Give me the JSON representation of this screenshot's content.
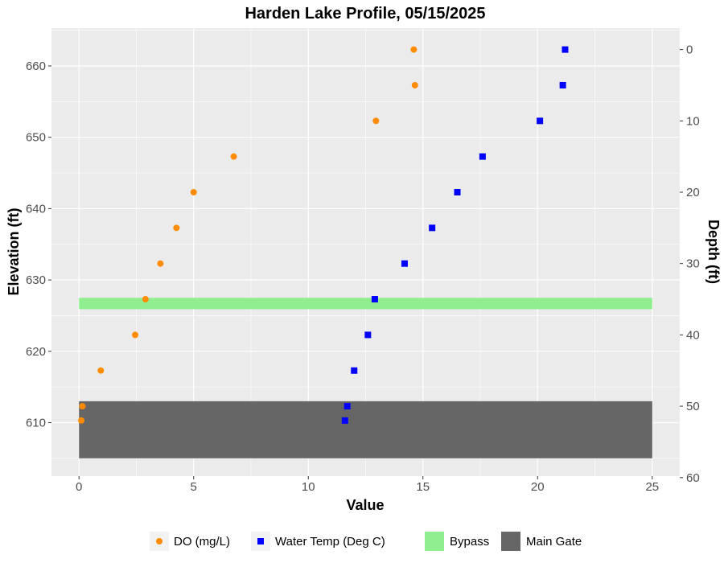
{
  "chart_data": {
    "type": "scatter",
    "title": "Harden Lake Profile,  05/15/2025",
    "xlabel": "Value",
    "ylabel": "Elevation (ft)",
    "y2label": "Depth (ft)",
    "xlim": [
      -1.2,
      26.2
    ],
    "ylim": [
      602.5,
      665.3
    ],
    "xticks": [
      0,
      5,
      10,
      15,
      20,
      25
    ],
    "yticks": [
      610,
      620,
      630,
      640,
      650,
      660
    ],
    "y2ticks": [
      0,
      10,
      20,
      30,
      40,
      50,
      60
    ],
    "surface_elevation": 662.3,
    "grid": true,
    "background": "#ebebeb",
    "legend_position": "bottom",
    "series": [
      {
        "name": "DO (mg/L)",
        "marker": "circle",
        "color": "#ff8c00",
        "points": [
          {
            "x": 14.6,
            "y": 662.3
          },
          {
            "x": 14.65,
            "y": 657.3
          },
          {
            "x": 12.95,
            "y": 652.3
          },
          {
            "x": 6.75,
            "y": 647.3
          },
          {
            "x": 5.0,
            "y": 642.3
          },
          {
            "x": 4.25,
            "y": 637.3
          },
          {
            "x": 3.55,
            "y": 632.3
          },
          {
            "x": 2.9,
            "y": 627.3
          },
          {
            "x": 2.45,
            "y": 622.3
          },
          {
            "x": 0.95,
            "y": 617.3
          },
          {
            "x": 0.15,
            "y": 612.3
          },
          {
            "x": 0.1,
            "y": 610.3
          }
        ]
      },
      {
        "name": "Water Temp (Deg C)",
        "marker": "square",
        "color": "#0000ff",
        "points": [
          {
            "x": 21.2,
            "y": 662.3
          },
          {
            "x": 21.1,
            "y": 657.3
          },
          {
            "x": 20.1,
            "y": 652.3
          },
          {
            "x": 17.6,
            "y": 647.3
          },
          {
            "x": 16.5,
            "y": 642.3
          },
          {
            "x": 15.4,
            "y": 637.3
          },
          {
            "x": 14.2,
            "y": 632.3
          },
          {
            "x": 12.9,
            "y": 627.3
          },
          {
            "x": 12.6,
            "y": 622.3
          },
          {
            "x": 12.0,
            "y": 617.3
          },
          {
            "x": 11.7,
            "y": 612.3
          },
          {
            "x": 11.6,
            "y": 610.3
          }
        ]
      }
    ],
    "bands": [
      {
        "name": "Bypass",
        "color": "#90ee90",
        "x": [
          0,
          25
        ],
        "y": [
          625.9,
          627.5
        ]
      },
      {
        "name": "Main Gate",
        "color": "#666666",
        "x": [
          0,
          25
        ],
        "y": [
          605.0,
          613.0
        ]
      }
    ]
  }
}
